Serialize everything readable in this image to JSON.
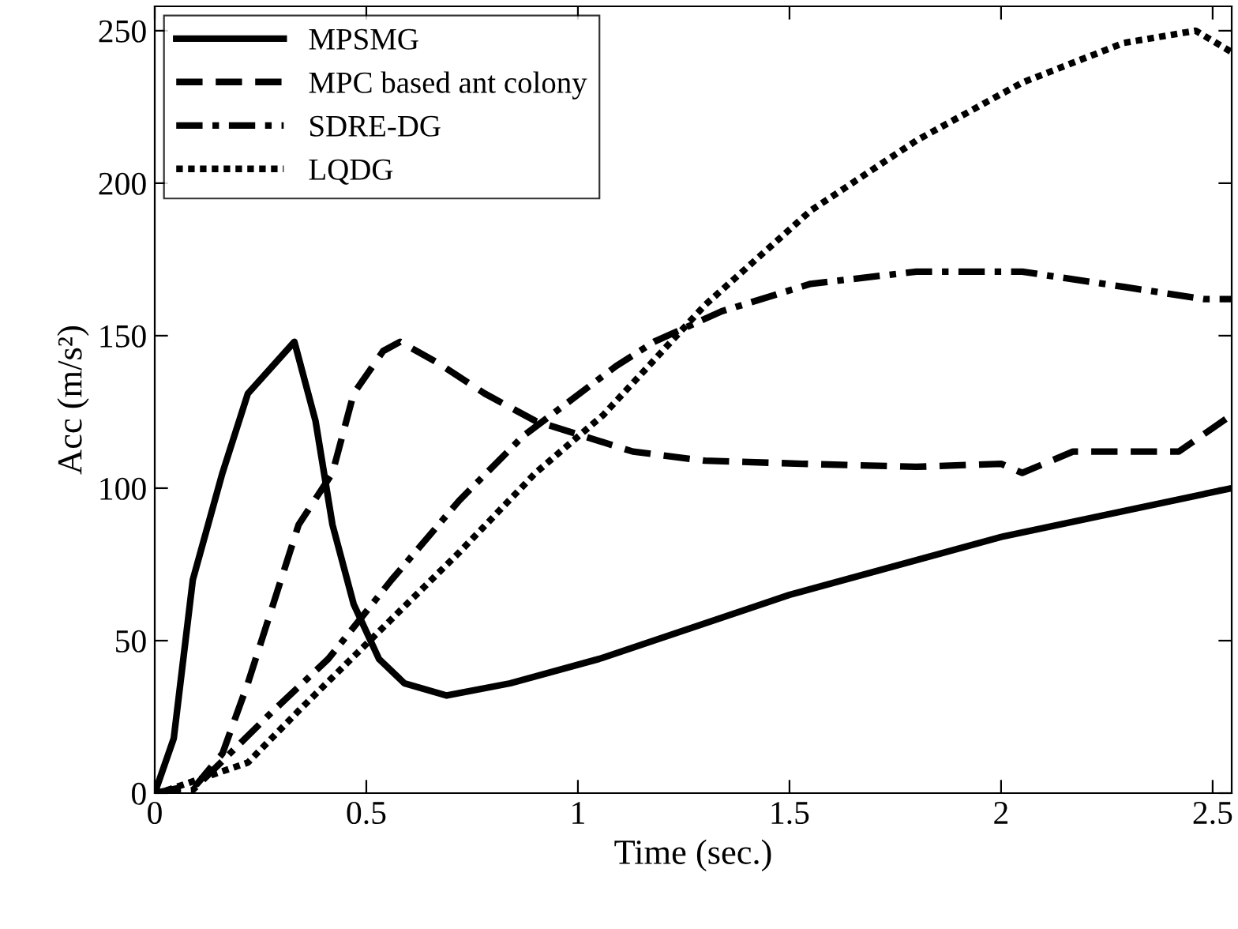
{
  "chart_data": {
    "type": "line",
    "xlabel": "Time (sec.)",
    "ylabel": "Acc (m/s²)",
    "xlim": [
      0,
      2.545
    ],
    "ylim": [
      0,
      258
    ],
    "xticks": [
      0,
      0.5,
      1,
      1.5,
      2,
      2.5
    ],
    "yticks": [
      0,
      50,
      100,
      150,
      200,
      250
    ],
    "grid": false,
    "legend": "top left",
    "marker": "none",
    "series": [
      {
        "name": "MPSMG",
        "color": "#000000",
        "line_style": "solid",
        "x": [
          0,
          0.045,
          0.09,
          0.16,
          0.22,
          0.33,
          0.38,
          0.42,
          0.47,
          0.53,
          0.59,
          0.69,
          0.84,
          1.05,
          1.5,
          2.0,
          2.545
        ],
        "values": [
          0,
          18,
          70,
          105,
          131,
          148,
          122,
          88,
          62,
          44,
          36,
          32,
          36,
          44,
          65,
          84,
          100
        ]
      },
      {
        "name": "MPC based ant colony",
        "color": "#000000",
        "line_style": "dashed",
        "x": [
          0,
          0.1,
          0.16,
          0.22,
          0.28,
          0.34,
          0.42,
          0.47,
          0.54,
          0.58,
          0.67,
          0.78,
          0.9,
          1.13,
          1.3,
          1.53,
          1.8,
          2.0,
          2.05,
          2.17,
          2.42,
          2.545
        ],
        "values": [
          0,
          3,
          13,
          36,
          62,
          88,
          105,
          131,
          145,
          148,
          141,
          131,
          122,
          112,
          109,
          108,
          107,
          108,
          105,
          112,
          112,
          124
        ]
      },
      {
        "name": "SDRE-DG",
        "color": "#000000",
        "line_style": "dashdot",
        "x": [
          0,
          0.09,
          0.28,
          0.41,
          0.56,
          0.72,
          0.87,
          1.09,
          1.18,
          1.34,
          1.55,
          1.8,
          2.05,
          2.29,
          2.48,
          2.545
        ],
        "values": [
          0,
          1,
          27,
          44,
          70,
          96,
          117,
          140,
          148,
          158,
          167,
          171,
          171,
          166,
          162,
          162
        ]
      },
      {
        "name": "LQDG",
        "color": "#000000",
        "line_style": "dotted",
        "x": [
          0,
          0.03,
          0.22,
          0.34,
          0.53,
          0.72,
          0.9,
          1.06,
          1.3,
          1.55,
          1.8,
          2.05,
          2.29,
          2.46,
          2.545
        ],
        "values": [
          0,
          1,
          10,
          27,
          53,
          79,
          105,
          124,
          160,
          191,
          214,
          233,
          246,
          250,
          243
        ]
      }
    ]
  }
}
